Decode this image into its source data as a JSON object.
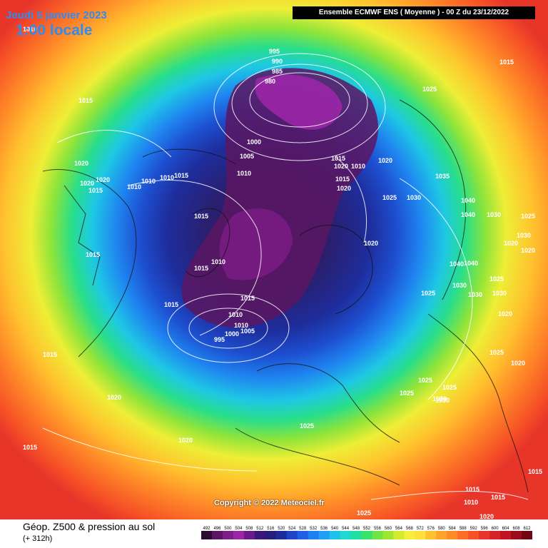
{
  "header": {
    "date": "Jeudi 5 janvier 2023",
    "local_time": "1:00 locale",
    "run_info": "Ensemble ECMWF ENS  ( Moyenne )  -  00 Z du 23/12/2022"
  },
  "map": {
    "copyright": "Copyright © 2022 Meteociel.fr",
    "isobar_labels": [
      "1010",
      "1015",
      "1015",
      "1020",
      "1020",
      "1020",
      "1015",
      "1010",
      "1010",
      "1010",
      "1015",
      "1015",
      "995",
      "990",
      "985",
      "980",
      "1000",
      "1005",
      "1010",
      "1015",
      "1020",
      "1010",
      "1015",
      "1020",
      "1020",
      "1025",
      "1030",
      "1035",
      "1040",
      "1040",
      "1030",
      "1025",
      "1030",
      "1040",
      "1030",
      "1025",
      "1020",
      "1015",
      "1010",
      "1005",
      "1010",
      "1000",
      "995",
      "1015",
      "1020",
      "1025",
      "1025",
      "1030",
      "1015",
      "1015",
      "1015",
      "1020",
      "1010",
      "1025",
      "1030",
      "1040",
      "1030",
      "1030",
      "1025",
      "1020",
      "1020",
      "1020",
      "1025",
      "1025",
      "1025",
      "1015",
      "1015",
      "1015",
      "1020",
      "1025",
      "1020",
      "1010",
      "1015"
    ]
  },
  "footer": {
    "title": "Géop. Z500 & pression au sol",
    "lead": "(+ 312h)"
  },
  "legend": {
    "ticks": [
      "492",
      "496",
      "500",
      "504",
      "508",
      "512",
      "516",
      "520",
      "524",
      "528",
      "532",
      "536",
      "540",
      "544",
      "548",
      "552",
      "556",
      "560",
      "564",
      "568",
      "572",
      "576",
      "580",
      "584",
      "588",
      "592",
      "596",
      "600",
      "604",
      "608",
      "612"
    ],
    "colors": [
      "#2b0b2f",
      "#5a1662",
      "#7d1d86",
      "#9a26a6",
      "#6a1a8a",
      "#3a1878",
      "#241f7a",
      "#1c2c9a",
      "#1d45c4",
      "#1f60e4",
      "#1f7ff0",
      "#1fa0f4",
      "#1ec0ec",
      "#1fd8cf",
      "#20dfa0",
      "#39e26a",
      "#6ee446",
      "#a0e630",
      "#d4ea2c",
      "#f6ee3a",
      "#ffdf3a",
      "#ffc22e",
      "#ffa42a",
      "#ff8a28",
      "#ff6e27",
      "#f65226",
      "#e8352a",
      "#d8222a",
      "#c01424",
      "#9a0c1c",
      "#700812"
    ]
  }
}
